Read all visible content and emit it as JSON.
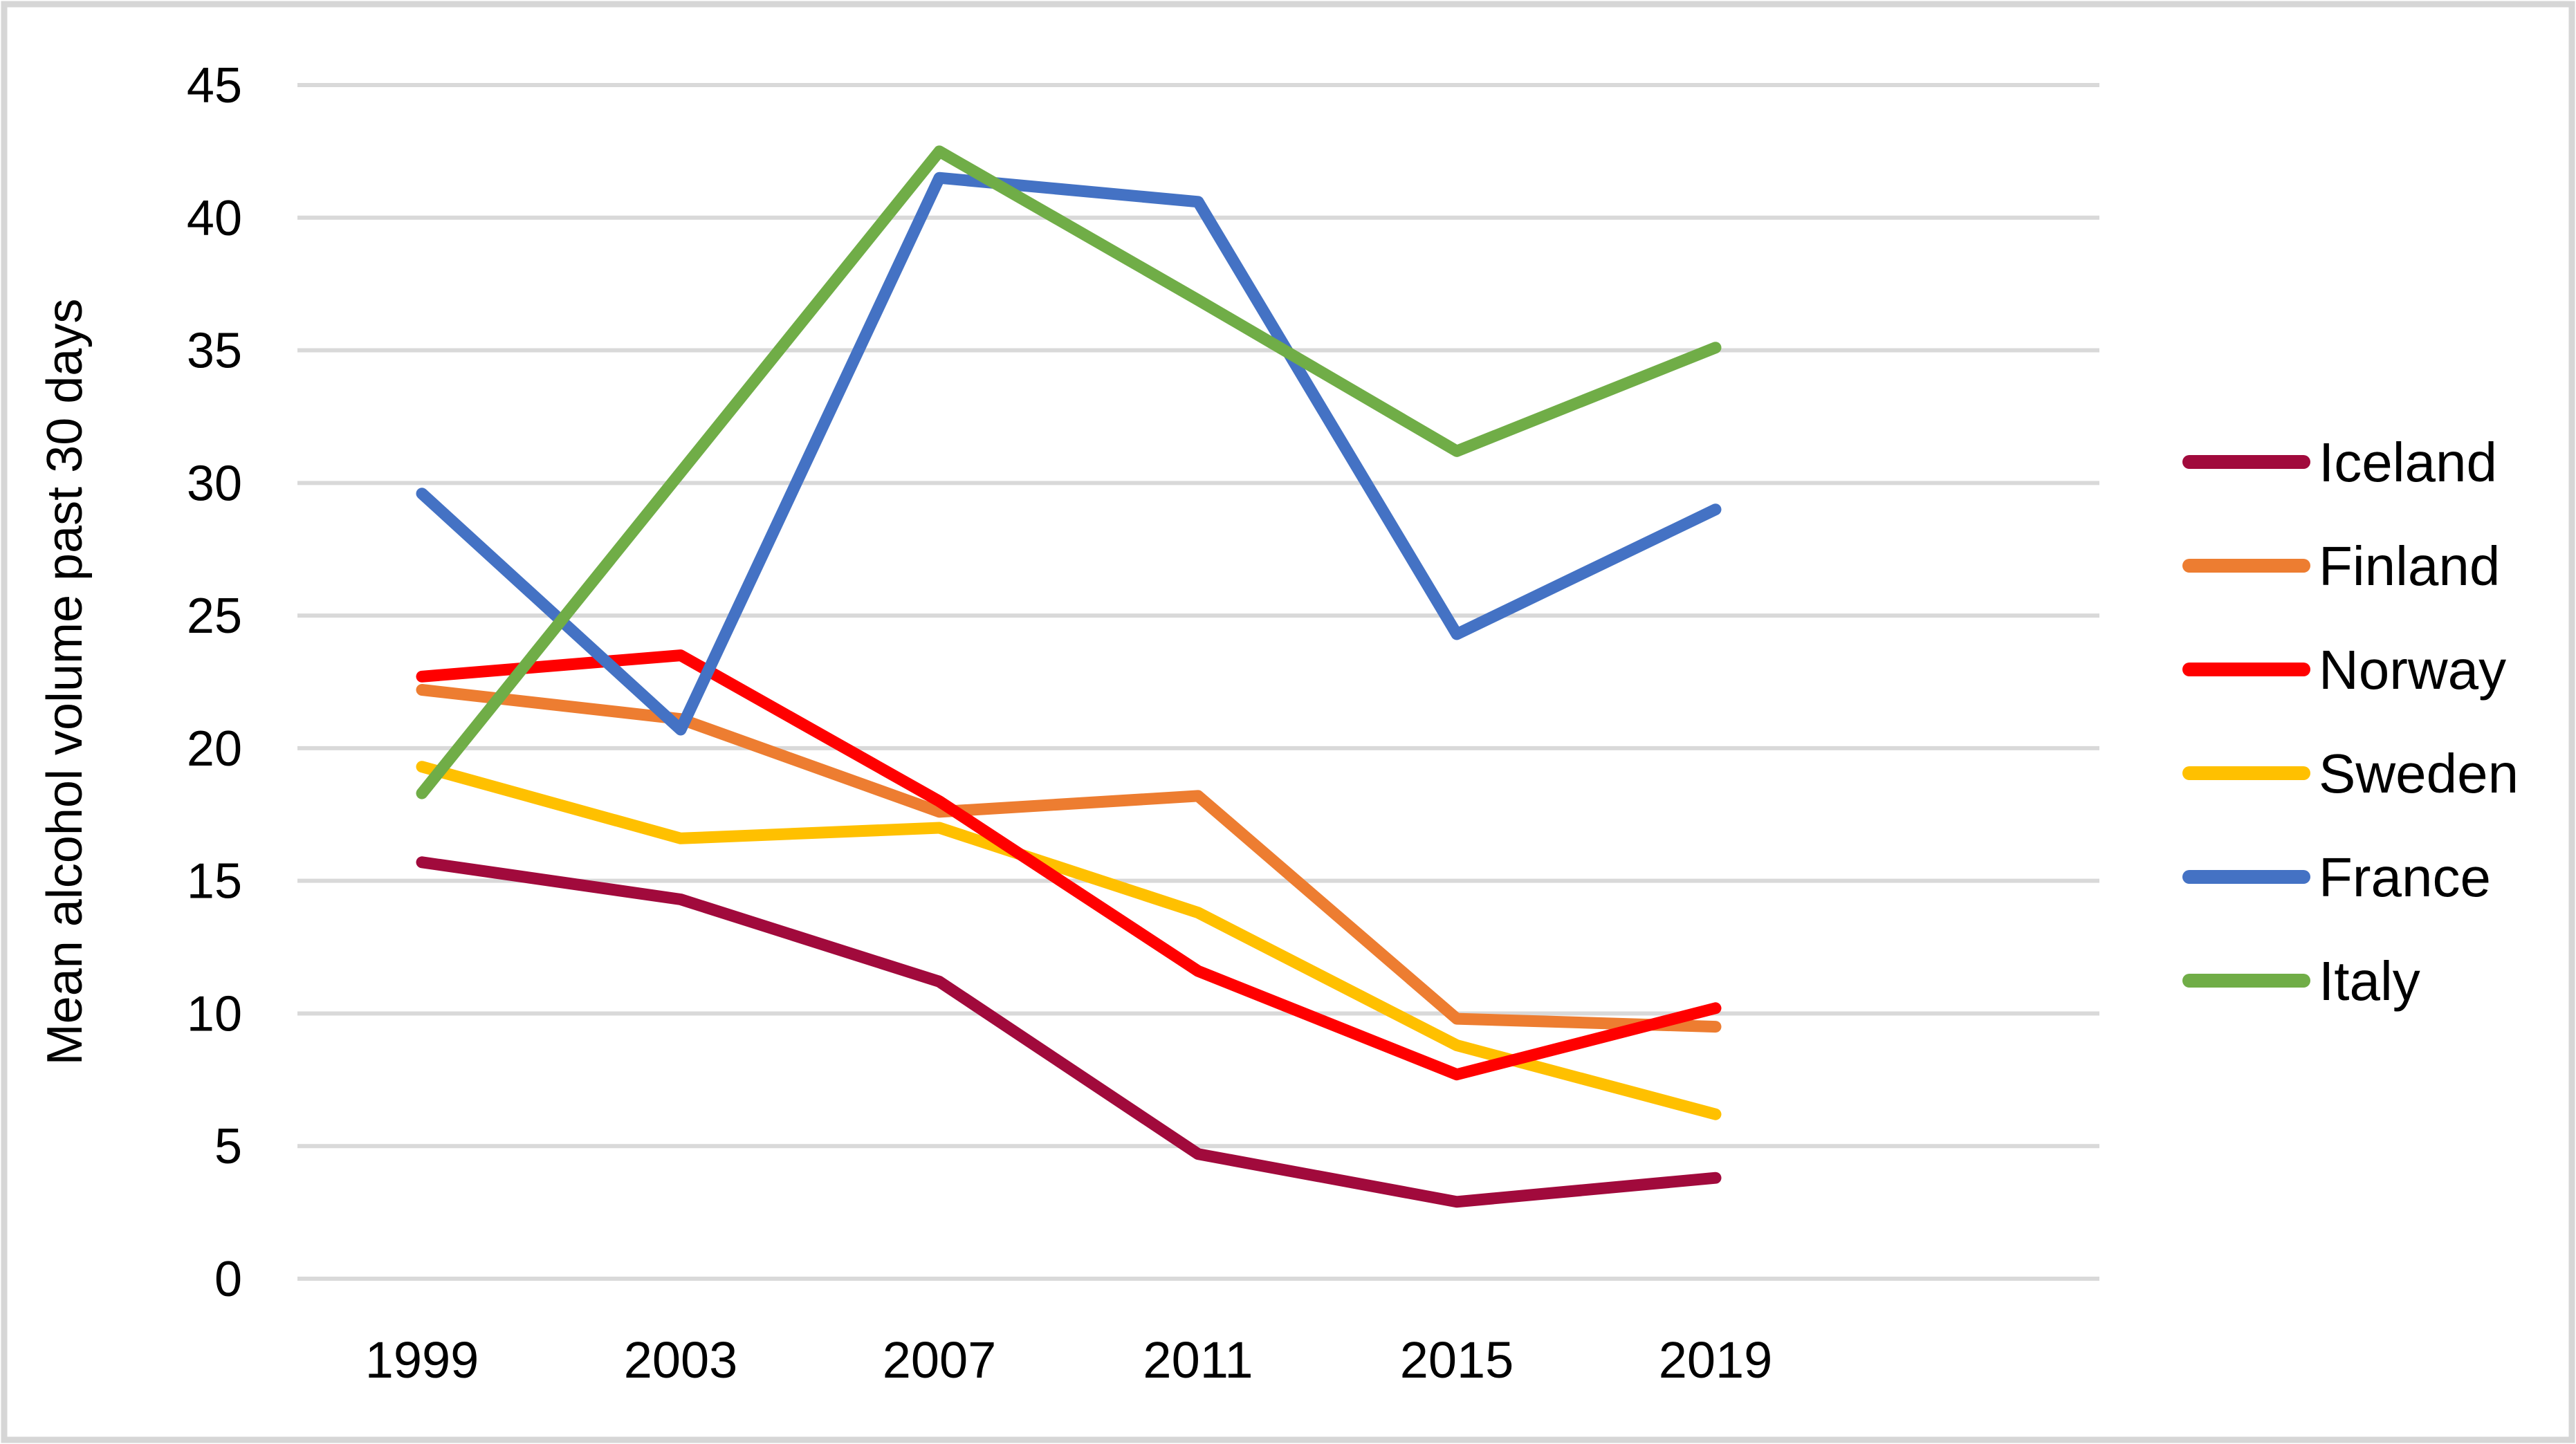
{
  "chart_data": {
    "type": "line",
    "title": "",
    "ylabel": "Mean alcohol volume past 30 days",
    "xlabel": "",
    "categories": [
      "1999",
      "2003",
      "2007",
      "2011",
      "2015",
      "2019"
    ],
    "series": [
      {
        "name": "Iceland",
        "color": "#A10A3C",
        "values": [
          15.7,
          14.3,
          11.2,
          4.7,
          2.9,
          3.8
        ]
      },
      {
        "name": "Finland",
        "color": "#ED7D31",
        "values": [
          22.2,
          21.1,
          17.6,
          18.2,
          9.8,
          9.5
        ]
      },
      {
        "name": "Norway",
        "color": "#FF0000",
        "values": [
          22.7,
          23.5,
          18.0,
          11.6,
          7.7,
          10.2
        ]
      },
      {
        "name": "Sweden",
        "color": "#FFC000",
        "values": [
          19.3,
          16.6,
          17.0,
          13.8,
          8.8,
          6.2
        ]
      },
      {
        "name": "France",
        "color": "#4472C4",
        "values": [
          29.6,
          20.7,
          41.5,
          40.6,
          24.3,
          29.0
        ]
      },
      {
        "name": "Italy",
        "color": "#70AD47",
        "values": [
          18.3,
          30.4,
          42.5,
          36.9,
          31.2,
          35.1
        ]
      }
    ],
    "ylim": [
      0,
      45
    ],
    "ytick_step": 5,
    "ytick_labels": [
      "0",
      "5",
      "10",
      "15",
      "20",
      "25",
      "30",
      "35",
      "40",
      "45"
    ],
    "grid": "horizontal",
    "legend_position": "right",
    "draw_order": [
      "Iceland",
      "Finland",
      "Sweden",
      "Norway",
      "France",
      "Italy"
    ],
    "gridline_color": "#D9D9D9",
    "border_color": "#D6D6D6",
    "text_color": "#000000",
    "background": "#FFFFFF"
  }
}
